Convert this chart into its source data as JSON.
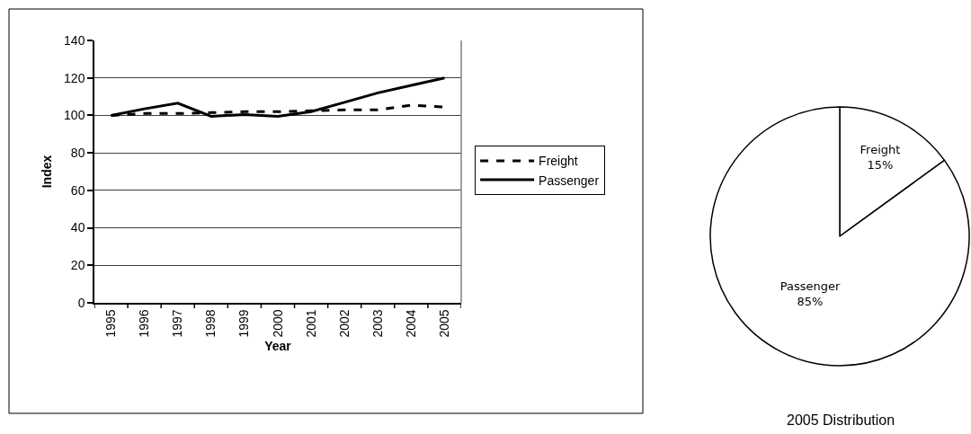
{
  "chart_data": [
    {
      "type": "line",
      "categories": [
        "1995",
        "1996",
        "1997",
        "1998",
        "1999",
        "2000",
        "2001",
        "2002",
        "2003",
        "2004",
        "2005"
      ],
      "xlabel": "Year",
      "ylabel": "Index",
      "ylim": [
        0,
        140
      ],
      "yticks": [
        0,
        20,
        40,
        60,
        80,
        100,
        120,
        140
      ],
      "grid": "y",
      "legend": "right",
      "series": [
        {
          "name": "Freight",
          "color": "#000000",
          "line_style": "dashed",
          "values": [
            100,
            101,
            101,
            101.5,
            102,
            102,
            102.5,
            103,
            103,
            105.5,
            104.5
          ]
        },
        {
          "name": "Passenger",
          "color": "#000000",
          "line_style": "solid",
          "values": [
            100,
            103.5,
            106.5,
            99.5,
            100.5,
            99.5,
            102,
            107,
            112,
            116,
            120
          ]
        }
      ]
    },
    {
      "type": "pie",
      "title": "2005 Distribution",
      "categories": [
        "Freight",
        "Passenger"
      ],
      "values": [
        15,
        85
      ],
      "value_labels": [
        "15%",
        "85%"
      ],
      "colors": [
        "#ffffff",
        "#ffffff"
      ]
    }
  ]
}
